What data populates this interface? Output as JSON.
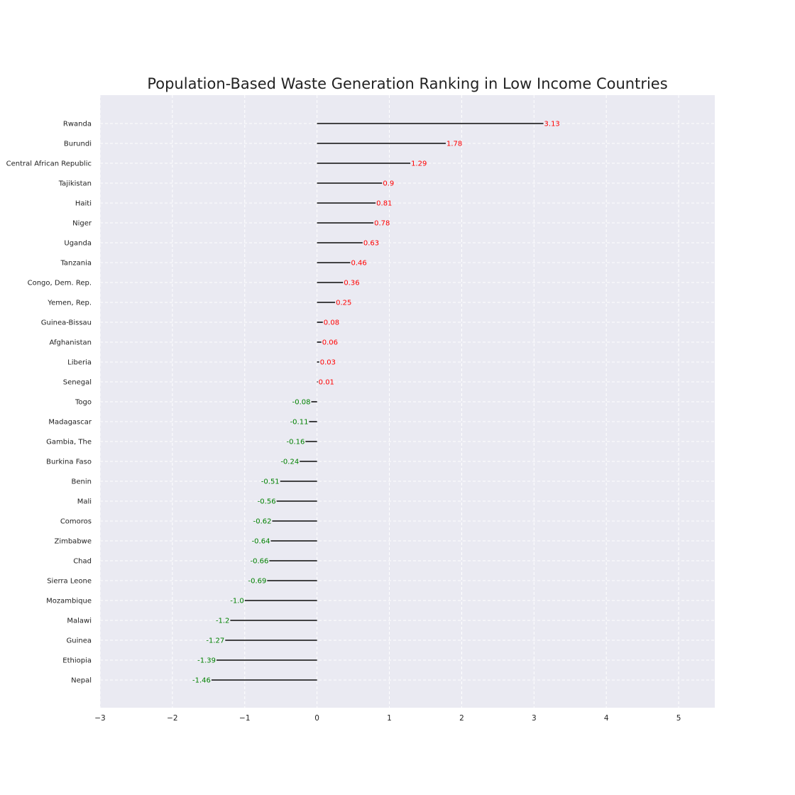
{
  "chart_data": {
    "type": "bar",
    "orientation": "horizontal",
    "title": "Population-Based Waste Generation Ranking in Low Income Countries",
    "xlabel": "",
    "ylabel": "",
    "xlim": [
      -3,
      5.5
    ],
    "xticks": [
      -3,
      -2,
      -1,
      0,
      1,
      2,
      3,
      4,
      5
    ],
    "xtick_labels": [
      "−3",
      "−2",
      "−1",
      "0",
      "1",
      "2",
      "3",
      "4",
      "5"
    ],
    "grid": true,
    "categories": [
      "Rwanda",
      "Burundi",
      "Central African Republic",
      "Tajikistan",
      "Haiti",
      "Niger",
      "Uganda",
      "Tanzania",
      "Congo, Dem. Rep.",
      "Yemen, Rep.",
      "Guinea-Bissau",
      "Afghanistan",
      "Liberia",
      "Senegal",
      "Togo",
      "Madagascar",
      "Gambia, The",
      "Burkina Faso",
      "Benin",
      "Mali",
      "Comoros",
      "Zimbabwe",
      "Chad",
      "Sierra Leone",
      "Mozambique",
      "Malawi",
      "Guinea",
      "Ethiopia",
      "Nepal"
    ],
    "values": [
      3.13,
      1.78,
      1.29,
      0.9,
      0.81,
      0.78,
      0.63,
      0.46,
      0.36,
      0.25,
      0.08,
      0.06,
      0.03,
      0.01,
      -0.08,
      -0.11,
      -0.16,
      -0.24,
      -0.51,
      -0.56,
      -0.62,
      -0.64,
      -0.66,
      -0.69,
      -1.0,
      -1.2,
      -1.27,
      -1.39,
      -1.46
    ],
    "value_labels": [
      "3.13",
      "1.78",
      "1.29",
      "0.9",
      "0.81",
      "0.78",
      "0.63",
      "0.46",
      "0.36",
      "0.25",
      "0.08",
      "0.06",
      "0.03",
      "0.01",
      "-0.08",
      "-0.11",
      "-0.16",
      "-0.24",
      "-0.51",
      "-0.56",
      "-0.62",
      "-0.64",
      "-0.66",
      "-0.69",
      "-1.0",
      "-1.2",
      "-1.27",
      "-1.39",
      "-1.46"
    ],
    "colors": {
      "positive_label": "#ff0000",
      "negative_label": "#008000",
      "line": "#2b2b2b",
      "plot_background": "#eaeaf2",
      "grid": "#ffffff"
    }
  }
}
